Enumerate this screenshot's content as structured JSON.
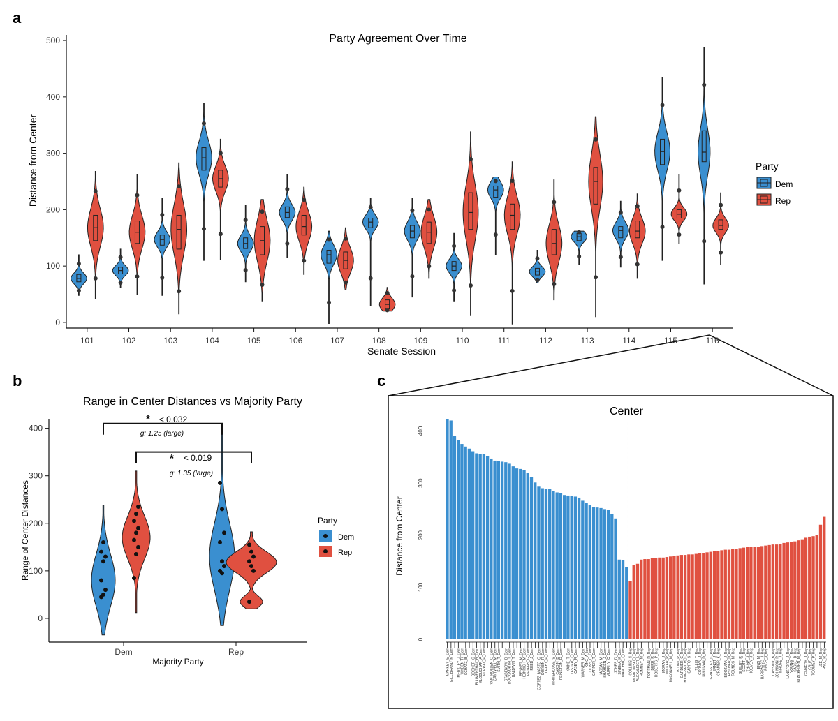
{
  "panels": {
    "a_label": "a",
    "b_label": "b",
    "c_label": "c"
  },
  "colors": {
    "dem": "#3a8fd0",
    "rep": "#e05040",
    "outline": "#222222"
  },
  "chart_data": [
    {
      "id": "a",
      "type": "violin",
      "title": "Party Agreement Over Time",
      "xlabel": "Senate Session",
      "ylabel": "Distance from Center",
      "categories": [
        "101",
        "102",
        "103",
        "104",
        "105",
        "106",
        "107",
        "108",
        "109",
        "110",
        "111",
        "112",
        "113",
        "114",
        "115",
        "116"
      ],
      "ylim": [
        -10,
        510
      ],
      "yticks": [
        0,
        100,
        200,
        300,
        400,
        500
      ],
      "legend": {
        "title": "Party",
        "position": "right",
        "entries": [
          "Dem",
          "Rep"
        ]
      },
      "series": [
        {
          "name": "Dem",
          "median": [
            78,
            92,
            147,
            292,
            140,
            195,
            120,
            178,
            162,
            100,
            235,
            90,
            152,
            163,
            303,
            302
          ],
          "q1": [
            72,
            86,
            137,
            270,
            131,
            186,
            105,
            168,
            150,
            92,
            222,
            84,
            145,
            150,
            280,
            285
          ],
          "q3": [
            85,
            98,
            155,
            310,
            150,
            205,
            128,
            185,
            172,
            108,
            242,
            96,
            158,
            170,
            325,
            340
          ],
          "min": [
            48,
            62,
            48,
            110,
            72,
            115,
            -2,
            30,
            45,
            38,
            120,
            70,
            102,
            98,
            110,
            68
          ],
          "max": [
            120,
            130,
            220,
            388,
            208,
            262,
            162,
            220,
            220,
            158,
            258,
            128,
            162,
            215,
            435,
            488
          ]
        },
        {
          "name": "Rep",
          "median": [
            168,
            160,
            165,
            255,
            145,
            170,
            110,
            32,
            160,
            195,
            190,
            140,
            250,
            162,
            192,
            172
          ],
          "q1": [
            145,
            140,
            130,
            240,
            120,
            155,
            95,
            25,
            140,
            165,
            165,
            120,
            210,
            150,
            185,
            165
          ],
          "q3": [
            190,
            180,
            190,
            270,
            170,
            190,
            125,
            40,
            178,
            230,
            210,
            165,
            275,
            180,
            200,
            182
          ],
          "min": [
            42,
            50,
            15,
            112,
            38,
            85,
            58,
            20,
            78,
            12,
            -3,
            40,
            10,
            78,
            140,
            102
          ],
          "max": [
            268,
            263,
            283,
            325,
            218,
            240,
            168,
            62,
            218,
            338,
            285,
            253,
            365,
            228,
            262,
            230
          ]
        }
      ]
    },
    {
      "id": "b",
      "type": "violin",
      "title": "Range in Center Distances vs Majority Party",
      "xlabel": "Majority Party",
      "ylabel": "Range of Center Distances",
      "categories": [
        "Dem",
        "Rep"
      ],
      "ylim": [
        -50,
        420
      ],
      "yticks": [
        0,
        100,
        200,
        300,
        400
      ],
      "legend": {
        "title": "Party",
        "position": "right",
        "entries": [
          "Dem",
          "Rep"
        ]
      },
      "series": [
        {
          "name": "Dem",
          "points": [
            [
              45,
              50,
              60,
              80,
              120,
              130,
              140,
              160
            ],
            [
              285,
              230,
              180,
              160,
              120,
              110,
              100,
              95
            ]
          ]
        },
        {
          "name": "Rep",
          "points": [
            [
              85,
              135,
              150,
              165,
              180,
              190,
              205,
              220,
              235
            ],
            [
              155,
              140,
              130,
              120,
              110,
              100,
              35
            ]
          ]
        }
      ],
      "annotations": [
        {
          "star": "*",
          "text": "< 0.032",
          "effect": "g: 1.25 (large)"
        },
        {
          "star": "*",
          "text": "< 0.019",
          "effect": "g: 1.35 (large)"
        }
      ]
    },
    {
      "id": "c",
      "type": "bar",
      "title": "Center",
      "ylabel": "Distance from Center",
      "ylim": [
        0,
        430
      ],
      "yticks": [
        0,
        100,
        200,
        300,
        400
      ],
      "dem_values": [
        422,
        420,
        390,
        382,
        375,
        370,
        366,
        361,
        357,
        356,
        355,
        352,
        347,
        343,
        342,
        341,
        340,
        337,
        332,
        328,
        327,
        325,
        320,
        312,
        301,
        293,
        290,
        289,
        288,
        285,
        282,
        280,
        277,
        276,
        275,
        274,
        272,
        266,
        262,
        258,
        254,
        253,
        252,
        250,
        248,
        240,
        232,
        153,
        152,
        138
      ],
      "rep_values": [
        112,
        142,
        145,
        153,
        154,
        154,
        156,
        156,
        157,
        157,
        158,
        159,
        160,
        161,
        162,
        162,
        163,
        163,
        164,
        165,
        165,
        167,
        168,
        169,
        170,
        171,
        172,
        172,
        173,
        174,
        175,
        176,
        177,
        177,
        178,
        178,
        179,
        180,
        181,
        182,
        182,
        183,
        185,
        186,
        187,
        188,
        190,
        192,
        195,
        197,
        198,
        200,
        220,
        235
      ],
      "dem_names": [
        "MARKEY_E_Dem",
        "GILLIBRAND_K_Dem",
        "HIRONO_M_Dem",
        "MERKLEY_J_Dem",
        "WARREN_E_Dem",
        "WYDEN_R_Dem",
        "SANDERS_B_Ind",
        "BLUMENTHAL_R_Dem",
        "BOOKER_C_Dem",
        "KLOBUCHAR_A_Dem",
        "SCHATZ_B_Dem",
        "MURPHY_C_Dem",
        "MURRAY_P_Dem",
        "CANTWELL_M_Dem",
        "VAN_HOLLEN_C_Dem",
        "STABENOW_D_Dem",
        "SMITH_T_Dem",
        "MENENDEZ_R_Dem",
        "BALDWIN_T_Dem",
        "BROWN_S_Dem",
        "DUCKWORTH_T_Dem",
        "HEINRICH_M_Dem",
        "BENNET_M_Dem",
        "REED_J_Dem",
        "PETERS_G_Dem",
        "CORTEZ_MASTO_C_Dem",
        "DURBIN_R_Dem",
        "LEAHY_P_Dem",
        "CARDIN_B_Dem",
        "WHITEHOUSE_S_Dem",
        "ROSEN_J_Dem",
        "FEINSTEIN_D_Dem",
        "SCHUMER_C_Dem",
        "KAINE_T_Dem",
        "TESTER_J_Dem",
        "CASEY_R_Dem",
        "WARNER_M_Dem",
        "KING_A_Ind",
        "COONS_C_Dem",
        "HASSAN_M_Dem",
        "SHAHEEN_J_Dem",
        "CARPER_T_Dem",
        "MURPHY_C_Dem",
        "JONES_D_Dem",
        "SINEMA_K_Dem",
        "MANCHIN_J_Dem",
        "COLLINS_S_Rep",
        "MURKOWSKI_L_Rep",
        "ALEXANDER_L_Rep",
        "ROMNEY_M_Rep"
      ],
      "rep_names": [
        "PORTMAN_R_Rep",
        "BURR_R_Rep",
        "ROBERTS_P_Rep",
        "MORAN_J_Rep",
        "WICKER_R_Rep",
        "McCONNELL_M_Rep",
        "BLUNT_R_Rep",
        "GARDNER_C_Rep",
        "HYDE-SMITH_C_Rep",
        "CAPITO_S_Rep",
        "TILLIS_T_Rep",
        "CORNYN_J_Rep",
        "SULLIVAN_D_Rep",
        "GRASSLEY_C_Rep",
        "ERNST_J_Rep",
        "CRAMER_K_Rep",
        "BOOZMAN_J_Rep",
        "FISCHER_D_Rep",
        "ROUNDS_M_Rep",
        "SHELBY_R_Rep",
        "PERDUE_D_Rep",
        "SCOTT_T_Rep",
        "THUNE_J_Rep",
        "HOEVEN_J_Rep",
        "ENZI_M_Rep",
        "BARRASSO_J_Rep",
        "RISCH_J_Rep",
        "CASSIDY_B_Rep",
        "LOEFFLER_K_Rep",
        "JOHNSON_R_Rep",
        "INHOFE_J_Rep",
        "LANKFORD_J_Rep",
        "YOUNG_T_Rep",
        "DAINES_S_Rep",
        "SASSE_B_Rep",
        "BLACKBURN_M_Rep",
        "KENNEDY_J_Rep",
        "McSALLY_M_Rep",
        "CRUZ_T_Rep",
        "HAWLEY_J_Rep",
        "TOOMEY_P_Rep",
        "LEE_M_Rep",
        "PAUL_R_Rep",
        "SCOTT_R_Rep",
        "CRAPO_M_Rep",
        "GRAHAM_L_Rep",
        "BRAUN_M_Rep",
        "RUBIO_M_Rep",
        "LEE_M_Rep",
        "COTTON_T_Rep",
        "HYDE_C_Rep",
        "ISAKSON_J_Rep",
        "MCSALLY_M_Rep",
        "TOOMEY_P_Rep"
      ],
      "names": [
        "MARKEY_E_Dem",
        "GILLIBRAND_K_Dem",
        "MERKLEY_J_Dem",
        "WYDEN_R_Dem",
        "SCHATZ_B_Dem",
        "BOOKER_C_Dem",
        "BLUMENTHAL_R_Dem",
        "KLOBUCHAR_A_Dem",
        "MURRAY_P_Dem",
        "VAN_HOLLEN_C_Dem",
        "CANTWELL_M_Dem",
        "SMITH_T_Dem",
        "STABENOW_D_Dem",
        "DUCKWORTH_T_Dem",
        "BALDWIN_T_Dem",
        "BENNET_M_Dem",
        "HEINRICH_M_Dem",
        "PETERS_G_Dem",
        "REED_J_Dem",
        "CORTEZ_MASTO_C_Dem",
        "DURBIN_R_Dem",
        "LEAHY_P_Dem",
        "WHITEHOUSE_S_Dem",
        "CARDIN_B_Dem",
        "FEINSTEIN_D_Dem",
        "KAINE_T_Dem",
        "TESTER_J_Dem",
        "CASEY_R_Dem",
        "WARNER_M_Dem",
        "KING_A_Ind",
        "COONS_C_Dem",
        "CARPER_T_Dem",
        "HASSAN_M_Dem",
        "SHAHEEN_J_Dem",
        "MURPHY_C_Dem",
        "JONES_D_Dem",
        "SINEMA_K_Dem",
        "MANCHIN_J_Dem",
        "COLLINS_S_Rep",
        "MURKOWSKI_L_Rep",
        "ALEXANDER_L_Rep",
        "ROMNEY_M_Rep",
        "PORTMAN_R_Rep",
        "BURR_R_Rep",
        "ROBERTS_P_Rep",
        "MORAN_J_Rep",
        "WICKER_R_Rep",
        "McCONNELL_M_Rep",
        "BLUNT_R_Rep",
        "GARDNER_C_Rep",
        "HYDE-SMITH_C_Rep",
        "CAPITO_S_Rep",
        "TILLIS_T_Rep",
        "CORNYN_J_Rep",
        "SULLIVAN_D_Rep",
        "GRASSLEY_C_Rep",
        "ERNST_J_Rep",
        "CRAMER_K_Rep",
        "BOOZMAN_J_Rep",
        "FISCHER_D_Rep",
        "ROUNDS_M_Rep",
        "SHELBY_R_Rep",
        "SCOTT_T_Rep",
        "THUNE_J_Rep",
        "HOEVEN_J_Rep",
        "ENZI_M_Rep",
        "BARRASSO_J_Rep",
        "RISCH_J_Rep",
        "CASSIDY_B_Rep",
        "JOHNSON_R_Rep",
        "INHOFE_J_Rep",
        "LANKFORD_J_Rep",
        "YOUNG_T_Rep",
        "SASSE_B_Rep",
        "BLACKBURN_M_Rep",
        "KENNEDY_J_Rep",
        "CRUZ_T_Rep",
        "TOOMEY_P_Rep",
        "LEE_M_Rep",
        "PAUL_R_Rep"
      ]
    }
  ]
}
